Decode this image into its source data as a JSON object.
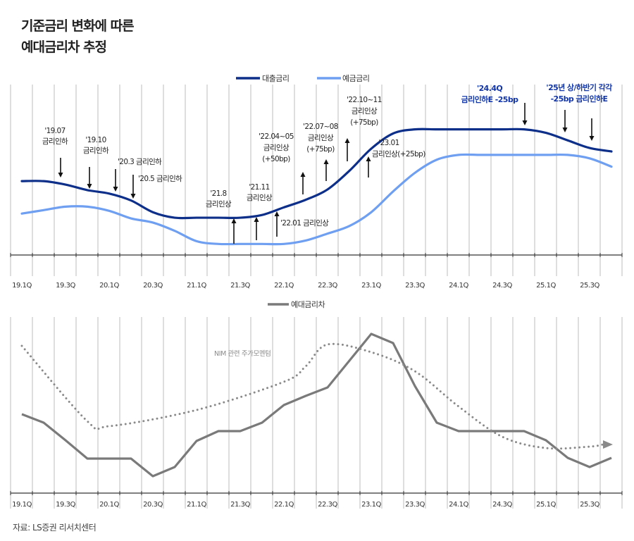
{
  "title_lines": [
    "기준금리 변화에 따른",
    "예대금리차 추정"
  ],
  "source": "자료: LS증권 리서치센터",
  "colors": {
    "loan": "#0d2f8a",
    "deposit": "#6f9ff0",
    "spread": "#7a7a7a",
    "trend": "#8a8a8a",
    "forecast_annotation": "#1236a8",
    "annotation": "#222222"
  },
  "chart_data": [
    {
      "type": "line",
      "title": "",
      "xlabel": "",
      "ylabel": "",
      "y_axis_labels_shown": false,
      "grid": "vertical",
      "legend_placement": "top-center",
      "x": [
        "19.1Q",
        "19.2Q",
        "19.3Q",
        "19.4Q",
        "20.1Q",
        "20.2Q",
        "20.3Q",
        "20.4Q",
        "21.1Q",
        "21.2Q",
        "21.3Q",
        "21.4Q",
        "22.1Q",
        "22.2Q",
        "22.3Q",
        "22.4Q",
        "23.1Q",
        "23.2Q",
        "23.3Q",
        "23.4Q",
        "24.1Q",
        "24.2Q",
        "24.3Q",
        "24.4Q",
        "25.1Q",
        "25.2Q",
        "25.3Q",
        "25.4Q"
      ],
      "tick_labels": [
        "19.1Q",
        "19.3Q",
        "20.1Q",
        "20.3Q",
        "21.1Q",
        "21.3Q",
        "22.1Q",
        "22.3Q",
        "23.1Q",
        "23.3Q",
        "24.1Q",
        "24.3Q",
        "25.1Q",
        "25.3Q"
      ],
      "ylim": [
        0,
        250
      ],
      "series": [
        {
          "name": "대출금리",
          "values": [
            107,
            107,
            102,
            94,
            89,
            79,
            62,
            54,
            54,
            54,
            54,
            58,
            69,
            80,
            95,
            122,
            154,
            176,
            182,
            182,
            182,
            182,
            182,
            182,
            177,
            166,
            155,
            150
          ]
        },
        {
          "name": "예금금리",
          "values": [
            60,
            65,
            70,
            70,
            64,
            53,
            47,
            35,
            20,
            16,
            16,
            16,
            16,
            21,
            31,
            42,
            62,
            92,
            119,
            138,
            145,
            145,
            145,
            145,
            145,
            145,
            140,
            128
          ]
        }
      ],
      "annotations": [
        {
          "lines": [
            "'19.07",
            "금리인하"
          ],
          "direction": "down"
        },
        {
          "lines": [
            "'19.10",
            "금리인하"
          ],
          "direction": "down"
        },
        {
          "lines": [
            "'20.3 금리인하"
          ],
          "direction": "down"
        },
        {
          "lines": [
            "'20.5 금리인하"
          ],
          "direction": "down"
        },
        {
          "lines": [
            "'21.8",
            "금리인상"
          ],
          "direction": "up"
        },
        {
          "lines": [
            "'21.11",
            "금리인상"
          ],
          "direction": "up"
        },
        {
          "lines": [
            "'22.01 금리인상"
          ],
          "direction": "up"
        },
        {
          "lines": [
            "'22.04~05",
            "금리인상",
            "(+50bp)"
          ],
          "direction": "up"
        },
        {
          "lines": [
            "'22.07~08",
            "금리인상",
            "(+75bp)"
          ],
          "direction": "up"
        },
        {
          "lines": [
            "'22.10~11",
            "금리인상",
            "(+75bp)"
          ],
          "direction": "up"
        },
        {
          "lines": [
            "'23.01",
            "금리인상(+25bp)"
          ],
          "direction": "up"
        },
        {
          "lines": [
            "'24.4Q",
            "금리인하E -25bp"
          ],
          "direction": "down",
          "forecast": true
        },
        {
          "lines": [
            "'25년 상/하반기 각각",
            "-25bp 금리인하E"
          ],
          "direction": "down",
          "forecast": true
        }
      ]
    },
    {
      "type": "line",
      "title": "",
      "xlabel": "",
      "ylabel": "",
      "y_axis_labels_shown": false,
      "grid": "vertical",
      "legend_placement": "top-center",
      "x": [
        "19.1Q",
        "19.2Q",
        "19.3Q",
        "19.4Q",
        "20.1Q",
        "20.2Q",
        "20.3Q",
        "20.4Q",
        "21.1Q",
        "21.2Q",
        "21.3Q",
        "21.4Q",
        "22.1Q",
        "22.2Q",
        "22.3Q",
        "22.4Q",
        "23.1Q",
        "23.2Q",
        "23.3Q",
        "23.4Q",
        "24.1Q",
        "24.2Q",
        "24.3Q",
        "24.4Q",
        "25.1Q",
        "25.2Q",
        "25.3Q",
        "25.4Q"
      ],
      "tick_labels": [
        "19.1Q",
        "19.3Q",
        "20.1Q",
        "20.3Q",
        "21.1Q",
        "21.3Q",
        "22.1Q",
        "22.3Q",
        "23.1Q",
        "23.3Q",
        "24.1Q",
        "24.3Q",
        "25.1Q",
        "25.3Q"
      ],
      "ylim": [
        0,
        250
      ],
      "series": [
        {
          "name": "예대금리차",
          "values": [
            112,
            100,
            75,
            49,
            49,
            49,
            24,
            37,
            74,
            88,
            88,
            100,
            125,
            138,
            150,
            188,
            226,
            213,
            152,
            100,
            88,
            88,
            88,
            88,
            75,
            50,
            37,
            50
          ]
        }
      ],
      "trend": {
        "label": "NIM 관련 주가모멘텀",
        "style": "dotted-arrow",
        "points": [
          [
            "19.1Q",
            209
          ],
          [
            "19.4Q",
            102
          ],
          [
            "20.1Q",
            95
          ],
          [
            "21.1Q",
            118
          ],
          [
            "22.1Q",
            158
          ],
          [
            "22.2Q",
            180
          ],
          [
            "22.3Q",
            211
          ],
          [
            "23.1Q",
            200
          ],
          [
            "23.3Q",
            173
          ],
          [
            "24.1Q",
            123
          ],
          [
            "24.3Q",
            80
          ],
          [
            "25.1Q",
            64
          ],
          [
            "25.3Q",
            66
          ],
          [
            "25.4Q",
            69
          ]
        ]
      }
    }
  ]
}
